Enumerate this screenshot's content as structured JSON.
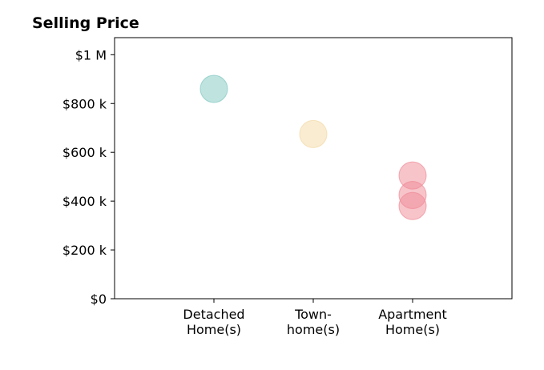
{
  "chart_data": {
    "type": "scatter",
    "title": "Selling Price",
    "xlabel": "",
    "ylabel": "",
    "categories": [
      [
        "Detached",
        "Home(s)"
      ],
      [
        "Town-",
        "home(s)"
      ],
      [
        "Apartment",
        "Home(s)"
      ]
    ],
    "xlim": [
      0,
      4
    ],
    "ylim": [
      0,
      1070000
    ],
    "y_ticks": [
      {
        "value": 0,
        "label": "$0"
      },
      {
        "value": 200000,
        "label": "$200 k"
      },
      {
        "value": 400000,
        "label": "$400 k"
      },
      {
        "value": 600000,
        "label": "$600 k"
      },
      {
        "value": 800000,
        "label": "$800 k"
      },
      {
        "value": 1000000,
        "label": "$1 M"
      }
    ],
    "grid": false,
    "series": [
      {
        "category_index": 0,
        "values": [
          860000
        ],
        "color": "#7fc8c0"
      },
      {
        "category_index": 1,
        "values": [
          675000
        ],
        "color": "#f3d9a4"
      },
      {
        "category_index": 2,
        "values": [
          505000,
          425000,
          380000
        ],
        "color": "#ef8a96"
      }
    ]
  }
}
